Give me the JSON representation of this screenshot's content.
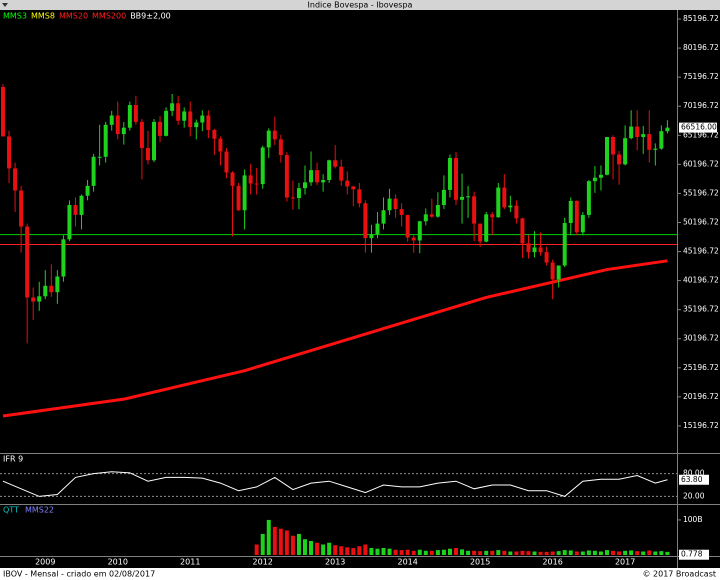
{
  "window": {
    "title": "Indice Bovespa - Ibovespa"
  },
  "chart_data": [
    {
      "type": "candlestick",
      "legend": [
        {
          "name": "MMS3",
          "color": "#00ff00"
        },
        {
          "name": "MMS8",
          "color": "#ffff00"
        },
        {
          "name": "MMS20",
          "color": "#ff2020"
        },
        {
          "name": "MMS200",
          "color": "#ff2020"
        },
        {
          "name": "BB9±2,00",
          "color": "#ffffff"
        }
      ],
      "categories": [
        null,
        null,
        null,
        null,
        null,
        null,
        null,
        "2009",
        null,
        null,
        null,
        null,
        null,
        null,
        null,
        null,
        null,
        null,
        null,
        "2010",
        null,
        null,
        null,
        null,
        null,
        null,
        null,
        null,
        null,
        null,
        null,
        "2011",
        null,
        null,
        null,
        null,
        null,
        null,
        null,
        null,
        null,
        null,
        null,
        "2012",
        null,
        null,
        null,
        null,
        null,
        null,
        null,
        null,
        null,
        null,
        null,
        "2013",
        null,
        null,
        null,
        null,
        null,
        null,
        null,
        null,
        null,
        null,
        null,
        "2014",
        null,
        null,
        null,
        null,
        null,
        null,
        null,
        null,
        null,
        null,
        null,
        "2015",
        null,
        null,
        null,
        null,
        null,
        null,
        null,
        null,
        null,
        null,
        null,
        "2016",
        null,
        null,
        null,
        null,
        null,
        null,
        null,
        null,
        null,
        null,
        null,
        "2017",
        null,
        null,
        null,
        null,
        null,
        null,
        null
      ],
      "open": [
        73500,
        65000,
        59500,
        55700,
        49500,
        37300,
        36600,
        37500,
        39300,
        38200,
        40900,
        47300,
        53200,
        51500,
        54800,
        56500,
        61500,
        61500,
        67000,
        68600,
        65400,
        66500,
        70400,
        67500,
        63000,
        60900,
        67500,
        65100,
        69400,
        70700,
        67700,
        69300,
        66600,
        67400,
        68600,
        66100,
        64600,
        62400,
        58800,
        56500,
        52300,
        58300,
        56900,
        56800,
        63100,
        66000,
        64500,
        61800,
        54500,
        54400,
        56100,
        57100,
        59200,
        57100,
        57500,
        60900,
        59800,
        57400,
        56400,
        55900,
        53500,
        47500,
        48200,
        50000,
        52300,
        54300,
        52500,
        51500,
        47600,
        47100,
        50400,
        51600,
        51200,
        53200,
        55800,
        61300,
        54100,
        54600,
        54700,
        50000,
        46900,
        51600,
        51100,
        56200,
        52800,
        53100,
        50900,
        46600,
        45100,
        45900,
        45100,
        43300,
        40400,
        42800,
        50100,
        53900,
        48500,
        51500,
        57300,
        57900,
        58400,
        64900,
        61900,
        60200,
        64700,
        66700,
        64900,
        65400,
        62700,
        62900,
        65900
      ],
      "high": [
        74000,
        66000,
        60500,
        56500,
        50000,
        39000,
        40000,
        42000,
        43000,
        42000,
        48000,
        54000,
        54500,
        55000,
        57500,
        62000,
        67000,
        67500,
        69400,
        71000,
        67500,
        71000,
        72000,
        68000,
        66000,
        68000,
        68500,
        70000,
        72300,
        72000,
        70000,
        71000,
        67900,
        69500,
        69500,
        66300,
        65000,
        63000,
        59000,
        57000,
        59300,
        60300,
        59600,
        63400,
        66400,
        68400,
        65300,
        62300,
        57400,
        57000,
        60000,
        62400,
        60500,
        58500,
        61000,
        63500,
        61000,
        59000,
        56500,
        57000,
        54000,
        49800,
        52000,
        54500,
        56000,
        55000,
        53500,
        51500,
        48000,
        50500,
        52600,
        54300,
        55400,
        58300,
        61900,
        62300,
        58600,
        56500,
        55500,
        50000,
        52000,
        52000,
        57000,
        58500,
        54800,
        54000,
        51000,
        48000,
        48700,
        48500,
        46000,
        43800,
        42800,
        51000,
        54500,
        54000,
        52000,
        57500,
        59900,
        60000,
        64900,
        65200,
        62500,
        66900,
        69500,
        69500,
        66800,
        69500,
        63800,
        66900,
        67800
      ],
      "low": [
        65000,
        57000,
        52000,
        45000,
        29400,
        33400,
        35000,
        37000,
        37400,
        36200,
        40000,
        47000,
        49500,
        49000,
        54000,
        55500,
        60000,
        60500,
        66000,
        64500,
        63600,
        66000,
        67000,
        57600,
        60200,
        60600,
        64000,
        65000,
        68500,
        67000,
        66500,
        65000,
        64500,
        65900,
        64700,
        61800,
        60000,
        57800,
        47800,
        52200,
        49000,
        55000,
        55000,
        56000,
        61300,
        63500,
        60500,
        53800,
        52400,
        52500,
        55000,
        56500,
        56600,
        55500,
        57000,
        59500,
        56500,
        55000,
        53000,
        52800,
        45000,
        45000,
        47500,
        49000,
        51500,
        51000,
        49500,
        46900,
        45000,
        44900,
        49700,
        51000,
        51000,
        52500,
        54500,
        53200,
        50000,
        51000,
        47000,
        46000,
        46800,
        48000,
        51000,
        52500,
        52000,
        50000,
        44100,
        44000,
        44200,
        44500,
        42800,
        37000,
        39000,
        42500,
        48000,
        48000,
        48000,
        51000,
        55300,
        55700,
        58300,
        57600,
        56700,
        60000,
        64500,
        62600,
        62000,
        60500,
        60000,
        62700,
        65500
      ],
      "close": [
        65000,
        59500,
        55700,
        49500,
        37300,
        36600,
        37500,
        39300,
        38200,
        40900,
        47300,
        53200,
        51500,
        54800,
        56500,
        61500,
        61500,
        67000,
        68600,
        65400,
        66500,
        70400,
        67500,
        63000,
        60900,
        67500,
        65100,
        69400,
        70700,
        67700,
        69300,
        66600,
        67400,
        68600,
        66100,
        64600,
        62400,
        58800,
        56500,
        52300,
        58300,
        56900,
        56800,
        63100,
        66000,
        64500,
        61800,
        54500,
        54400,
        56100,
        57100,
        59200,
        57100,
        57500,
        60900,
        59800,
        57400,
        56400,
        55900,
        53500,
        47500,
        48200,
        50000,
        52300,
        54300,
        52500,
        51500,
        47600,
        47100,
        50400,
        51600,
        51200,
        53200,
        55800,
        61300,
        54100,
        54600,
        54700,
        50000,
        46900,
        51600,
        51100,
        56200,
        52800,
        53100,
        50900,
        46600,
        45100,
        45900,
        45100,
        43300,
        40400,
        42800,
        50100,
        53900,
        48500,
        51500,
        57300,
        57900,
        58400,
        64900,
        61900,
        60200,
        64700,
        66700,
        64900,
        65400,
        62700,
        62900,
        65900,
        66516
      ],
      "up_color": "#1ed21e",
      "down_color": "#e81010",
      "lines": [
        {
          "name": "MMS200",
          "color": "#ff1010",
          "x": [
            0,
            20,
            40,
            60,
            80,
            100,
            110
          ],
          "values": [
            16900,
            19800,
            24700,
            31000,
            37300,
            42100,
            43600
          ]
        }
      ],
      "hlines": [
        {
          "value": 48100,
          "color": "#00d000"
        },
        {
          "value": 46400,
          "color": "#ff2020"
        }
      ],
      "last_value": 66516,
      "last_value_label": "66516.00",
      "ylim": [
        10540,
        86750
      ],
      "yticks": [
        85196.72,
        80196.72,
        75196.72,
        70196.72,
        65196.72,
        60196.72,
        55196.72,
        50196.72,
        45196.72,
        40196.72,
        35196.72,
        30196.72,
        25196.72,
        20196.72,
        15196.72
      ]
    },
    {
      "type": "line",
      "title": "IFR 9",
      "color": "#ffffff",
      "x": [
        0,
        3,
        6,
        9,
        12,
        15,
        18,
        21,
        24,
        27,
        30,
        33,
        36,
        39,
        42,
        45,
        48,
        51,
        54,
        57,
        60,
        63,
        66,
        69,
        72,
        75,
        78,
        81,
        84,
        87,
        90,
        93,
        96,
        99,
        102,
        105,
        108,
        110
      ],
      "values": [
        60,
        40,
        20,
        25,
        70,
        80,
        85,
        82,
        60,
        70,
        70,
        68,
        55,
        35,
        45,
        70,
        38,
        55,
        60,
        45,
        30,
        50,
        45,
        45,
        55,
        60,
        40,
        50,
        50,
        35,
        35,
        20,
        60,
        65,
        65,
        75,
        55,
        63.8
      ],
      "ylim": [
        0,
        100
      ],
      "yticks": [
        {
          "value": 80,
          "label": "80.00"
        },
        {
          "value": 20,
          "label": "20.00"
        }
      ],
      "last_value": 63.8,
      "last_value_label": "63.80"
    },
    {
      "type": "volume",
      "legend": [
        {
          "name": "QTT",
          "color": "#00c8c8"
        },
        {
          "name": "MMS22",
          "color": "#8080ff"
        }
      ],
      "values": [
        null,
        null,
        null,
        null,
        null,
        null,
        null,
        null,
        null,
        null,
        null,
        null,
        null,
        null,
        null,
        null,
        null,
        null,
        null,
        null,
        null,
        null,
        null,
        null,
        null,
        null,
        null,
        null,
        null,
        null,
        null,
        null,
        null,
        null,
        null,
        null,
        null,
        null,
        null,
        null,
        null,
        null,
        30,
        60,
        100,
        80,
        75,
        70,
        55,
        60,
        45,
        40,
        35,
        30,
        35,
        28,
        25,
        22,
        20,
        25,
        30,
        20,
        18,
        20,
        18,
        15,
        14,
        15,
        12,
        15,
        12,
        12,
        14,
        15,
        18,
        20,
        16,
        12,
        12,
        11,
        12,
        12,
        14,
        12,
        10,
        10,
        12,
        11,
        10,
        9,
        9,
        10,
        11,
        14,
        13,
        10,
        10,
        13,
        12,
        10,
        14,
        12,
        10,
        12,
        13,
        11,
        10,
        13,
        10,
        11,
        9
      ],
      "ylim": [
        0,
        134
      ],
      "yticks": [
        {
          "value": 100,
          "label": "100B"
        }
      ],
      "last_value": 0.778
    }
  ],
  "footer": {
    "left": "IBOV - Mensal - criado em 02/08/2017",
    "right": "© 2017 Broadcast"
  }
}
